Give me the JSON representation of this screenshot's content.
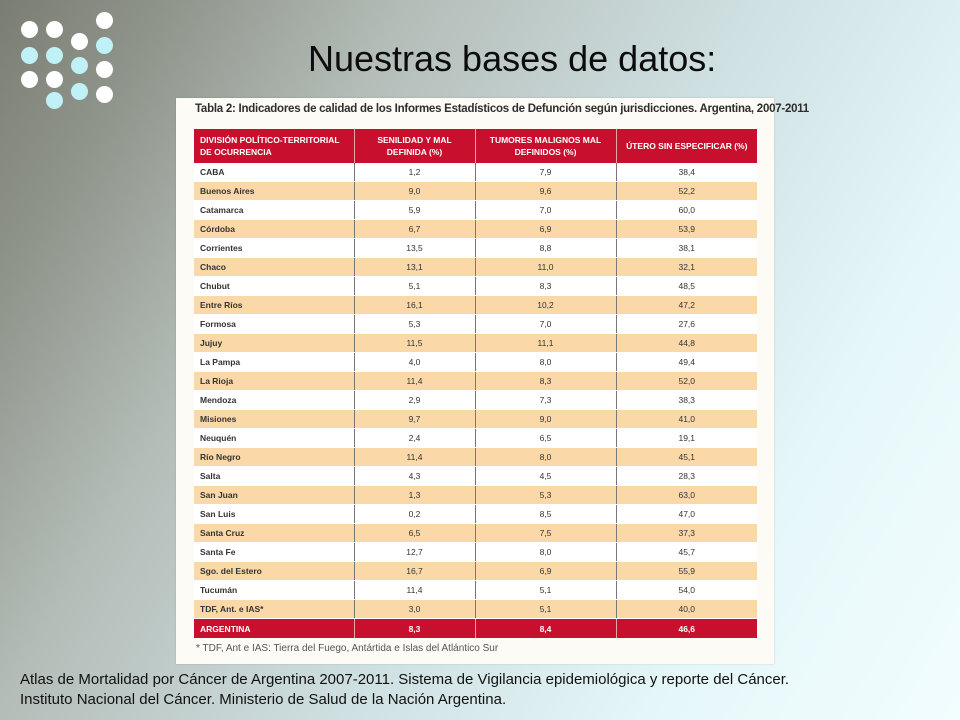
{
  "slide": {
    "title": "Nuestras bases de datos:",
    "source_line_1": "Atlas de Mortalidad por Cáncer de Argentina 2007-2011. Sistema de Vigilancia epidemiológica y reporte del Cáncer.",
    "source_line_2": "Instituto Nacional del Cáncer. Ministerio de Salud de la Nación Argentina."
  },
  "colors": {
    "header_red": "#c8102e",
    "row_orange": "#fad8a8",
    "dot_white": "#ffffff",
    "dot_cyan": "#bff1f7"
  },
  "table": {
    "caption": "Tabla 2: Indicadores de calidad de los Informes Estadísticos de Defunción según jurisdicciones. Argentina, 2007-2011",
    "columns": [
      "DIVISIÓN POLÍTICO-TERRITORIAL DE OCURRENCIA",
      "SENILIDAD Y MAL DEFINIDA (%)",
      "TUMORES MALIGNOS MAL DEFINIDOS (%)",
      "ÚTERO SIN ESPECIFICAR (%)"
    ],
    "rows": [
      [
        "CABA",
        "1,2",
        "7,9",
        "38,4"
      ],
      [
        "Buenos Aires",
        "9,0",
        "9,6",
        "52,2"
      ],
      [
        "Catamarca",
        "5,9",
        "7,0",
        "60,0"
      ],
      [
        "Córdoba",
        "6,7",
        "6,9",
        "53,9"
      ],
      [
        "Corrientes",
        "13,5",
        "8,8",
        "38,1"
      ],
      [
        "Chaco",
        "13,1",
        "11,0",
        "32,1"
      ],
      [
        "Chubut",
        "5,1",
        "8,3",
        "48,5"
      ],
      [
        "Entre Ríos",
        "16,1",
        "10,2",
        "47,2"
      ],
      [
        "Formosa",
        "5,3",
        "7,0",
        "27,6"
      ],
      [
        "Jujuy",
        "11,5",
        "11,1",
        "44,8"
      ],
      [
        "La Pampa",
        "4,0",
        "8,0",
        "49,4"
      ],
      [
        "La Rioja",
        "11,4",
        "8,3",
        "52,0"
      ],
      [
        "Mendoza",
        "2,9",
        "7,3",
        "38,3"
      ],
      [
        "Misiones",
        "9,7",
        "9,0",
        "41,0"
      ],
      [
        "Neuquén",
        "2,4",
        "6,5",
        "19,1"
      ],
      [
        "Río Negro",
        "11,4",
        "8,0",
        "45,1"
      ],
      [
        "Salta",
        "4,3",
        "4,5",
        "28,3"
      ],
      [
        "San Juan",
        "1,3",
        "5,3",
        "63,0"
      ],
      [
        "San Luis",
        "0,2",
        "8,5",
        "47,0"
      ],
      [
        "Santa Cruz",
        "6,5",
        "7,5",
        "37,3"
      ],
      [
        "Santa Fe",
        "12,7",
        "8,0",
        "45,7"
      ],
      [
        "Sgo. del Estero",
        "16,7",
        "6,9",
        "55,9"
      ],
      [
        "Tucumán",
        "11,4",
        "5,1",
        "54,0"
      ],
      [
        "TDF, Ant. e IAS*",
        "3,0",
        "5,1",
        "40,0"
      ]
    ],
    "total": [
      "ARGENTINA",
      "8,3",
      "8,4",
      "46,6"
    ],
    "footnote": "* TDF, Ant e IAS: Tierra del Fuego, Antártida e Islas del Atlántico Sur"
  }
}
